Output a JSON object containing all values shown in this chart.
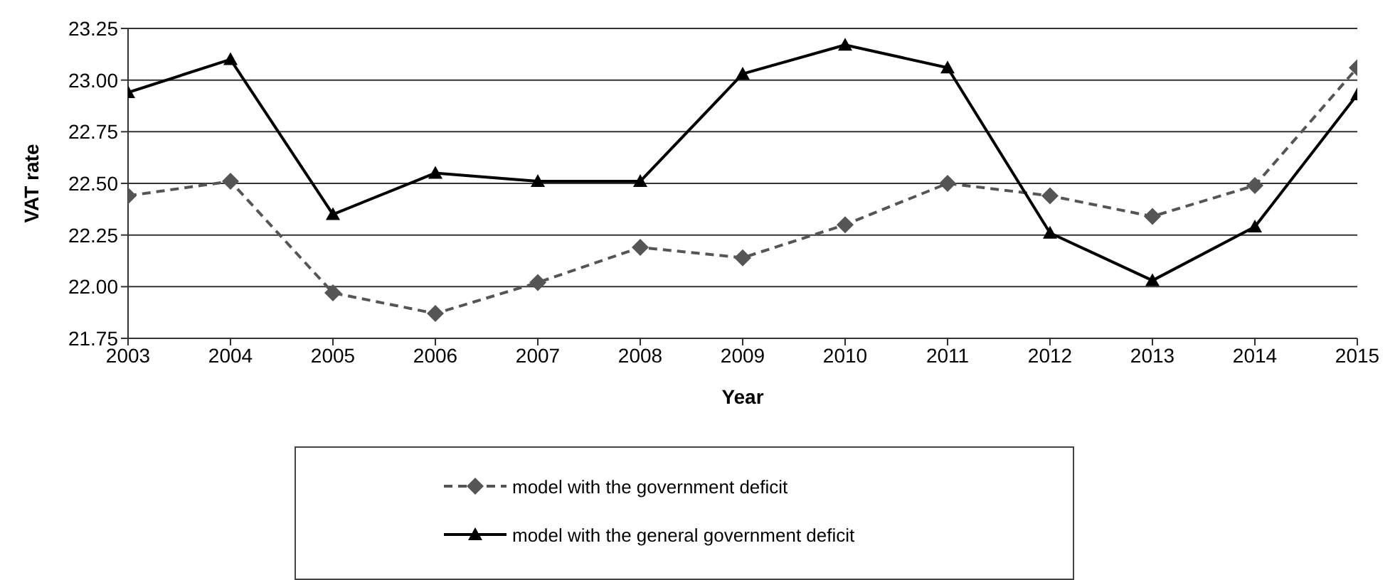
{
  "chart_data": {
    "type": "line",
    "xlabel": "Year",
    "ylabel": "VAT rate",
    "x": [
      2003,
      2004,
      2005,
      2006,
      2007,
      2008,
      2009,
      2010,
      2011,
      2012,
      2013,
      2014,
      2015
    ],
    "series": [
      {
        "name": "model with the government deficit",
        "color": "#555555",
        "marker": "diamond",
        "line_style": "dashed",
        "values": [
          22.44,
          22.51,
          21.97,
          21.87,
          22.02,
          22.19,
          22.14,
          22.3,
          22.5,
          22.44,
          22.34,
          22.49,
          23.06
        ]
      },
      {
        "name": "model with the general government deficit",
        "color": "#000000",
        "marker": "triangle",
        "line_style": "solid",
        "values": [
          22.94,
          23.1,
          22.35,
          22.55,
          22.51,
          22.51,
          23.03,
          23.17,
          23.06,
          22.26,
          22.03,
          22.29,
          22.93
        ]
      }
    ],
    "xlim": [
      2003,
      2015
    ],
    "xticks": [
      2003,
      2004,
      2005,
      2006,
      2007,
      2008,
      2009,
      2010,
      2011,
      2012,
      2013,
      2014,
      2015
    ],
    "ylim": [
      21.75,
      23.25
    ],
    "yticks": [
      21.75,
      {
        "value": 22,
        "label": "22.00"
      },
      22.25,
      {
        "value": 22.5,
        "label": "22.50"
      },
      22.75,
      {
        "value": 23,
        "label": "23.00"
      },
      23.25
    ],
    "grid": "y",
    "legend": "bottom"
  }
}
